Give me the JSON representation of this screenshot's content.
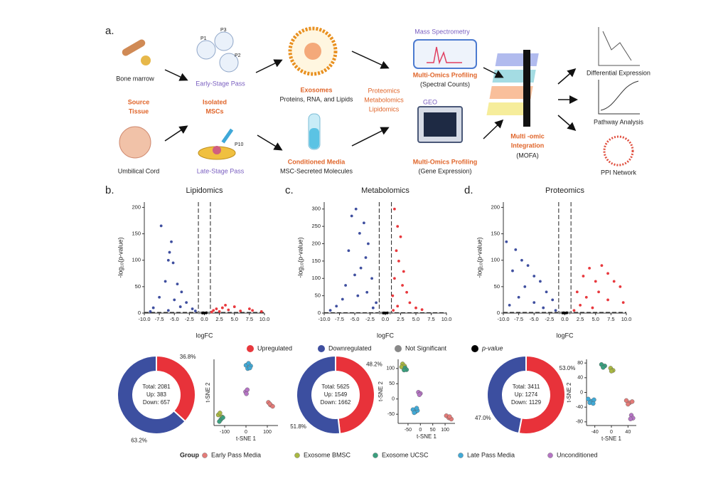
{
  "panel_a": {
    "label": "a.",
    "bone_marrow": "Bone marrow",
    "source_tissue": [
      "Source",
      "Tissue"
    ],
    "umbilical_cord": "Umbilical Cord",
    "passages": [
      "P1",
      "P2",
      "P3",
      "P10"
    ],
    "early_stage": "Early-Stage Pass",
    "isolated_mscs": [
      "Isolated",
      "MSCs"
    ],
    "late_stage": "Late-Stage Pass",
    "exosomes": "Exosomes",
    "exosome_contents": "Proteins, RNA, and Lipids",
    "conditioned_media": "Conditioned Media",
    "media_contents": "MSC-Secreted Molecules",
    "omics": [
      "Proteomics",
      "Metabolomics",
      "Lipidomics"
    ],
    "mass_spec": "Mass Spectrometry",
    "profiling_top": "Multi-Omics Profiling",
    "spectral": "(Spectral Counts)",
    "geo": "GEO",
    "profiling_bottom": "Multi-Omics Profiling",
    "gene_expr": "(Gene Expression)",
    "integration": [
      "Multi -omic",
      "Integration"
    ],
    "mofa": "(MOFA)",
    "outputs": [
      "Differential Expression",
      "Pathway Analysis",
      "PPI Network"
    ]
  },
  "volcano_legend": {
    "items": [
      {
        "name": "Upregulated",
        "color": "#e8383d"
      },
      {
        "name": "Downregulated",
        "color": "#3f4f9f"
      },
      {
        "name": "Not Significant",
        "color": "#888888"
      },
      {
        "name": "p-value",
        "color": "#000000"
      }
    ]
  },
  "group_legend": {
    "title": "Group",
    "items": [
      {
        "name": "Early Pass Media",
        "color": "#e37b78"
      },
      {
        "name": "Exosome BMSC",
        "color": "#a9b842"
      },
      {
        "name": "Exosome UCSC",
        "color": "#3a9f7e"
      },
      {
        "name": "Late Pass Media",
        "color": "#41a9d6"
      },
      {
        "name": "Unconditioned",
        "color": "#b574c4"
      }
    ]
  },
  "chart_data": [
    {
      "type": "volcano",
      "panel": "b.",
      "title": "Lipidomics",
      "x_label": "logFC",
      "y_label": "-log₁₀(p-value)",
      "xlim": [
        -10,
        10
      ],
      "xticks": [
        {
          "value": -10,
          "label": "-10.0"
        },
        -7.5,
        {
          "value": -5,
          "label": "-5.0"
        },
        -2.5,
        {
          "value": 0,
          "label": "0.0"
        },
        2.5,
        {
          "value": 5,
          "label": "5.0"
        },
        7.5,
        {
          "value": 10,
          "label": "10.0"
        }
      ],
      "ylim": [
        0,
        210
      ],
      "yticks": [
        0,
        50,
        100,
        150,
        200
      ],
      "fc_cutoff": [
        -1,
        1
      ],
      "p_cutoff": 1.3,
      "series": [
        {
          "x": [
            1.5,
            2,
            3,
            2.5,
            4,
            5,
            6,
            7.5,
            8,
            3.5,
            1.2,
            9.5
          ],
          "values": [
            5,
            8,
            10,
            3,
            6,
            12,
            4,
            8,
            5,
            15,
            2,
            3
          ]
        },
        {
          "x": [
            -7.2,
            -5.5,
            -5.8,
            -6,
            -5.2,
            -6.5,
            -4.5,
            -3.8,
            -7.5,
            -5,
            -3,
            -8.5,
            -2,
            -6,
            -4,
            -9,
            -1.5
          ],
          "values": [
            165,
            135,
            115,
            100,
            95,
            60,
            55,
            40,
            30,
            25,
            20,
            10,
            8,
            5,
            12,
            3,
            4
          ]
        },
        {
          "x": [
            -0.5,
            0.4,
            -0.2,
            0.8,
            -0.9
          ],
          "values": [
            0.5,
            0.8,
            1,
            0.3,
            0.6
          ]
        },
        {
          "x": [
            0,
            -0.3,
            0.3
          ],
          "values": [
            0.2,
            0.1,
            0.4
          ]
        }
      ]
    },
    {
      "type": "volcano",
      "panel": "c.",
      "title": "Metabolomics",
      "x_label": "logFC",
      "y_label": "-log₁₀(p-value)",
      "xlim": [
        -10,
        10
      ],
      "xticks": [
        {
          "value": -10,
          "label": "-10.0"
        },
        -7.5,
        {
          "value": -5,
          "label": "-5.0"
        },
        -2.5,
        {
          "value": 0,
          "label": "0.0"
        },
        2.5,
        {
          "value": 5,
          "label": "5.0"
        },
        7.5,
        {
          "value": 10,
          "label": "10.0"
        }
      ],
      "ylim": [
        0,
        320
      ],
      "yticks": [
        0,
        50,
        100,
        150,
        200,
        250,
        300
      ],
      "fc_cutoff": [
        -1,
        1
      ],
      "p_cutoff": 1.3,
      "series": [
        {
          "x": [
            1.5,
            2,
            2.5,
            1.8,
            2.2,
            3,
            1.5,
            2.8,
            3.5,
            1.2,
            4,
            2,
            6,
            1.3,
            5
          ],
          "values": [
            300,
            250,
            220,
            180,
            150,
            120,
            100,
            80,
            60,
            50,
            30,
            20,
            10,
            8,
            15
          ]
        },
        {
          "x": [
            -4.8,
            -5.5,
            -3.5,
            -4.2,
            -2.8,
            -6,
            -3.2,
            -4,
            -5,
            -2.2,
            -6.5,
            -3,
            -7,
            -8,
            -9,
            -1.5,
            -2,
            -4.5
          ],
          "values": [
            300,
            280,
            260,
            230,
            200,
            180,
            160,
            130,
            110,
            100,
            80,
            60,
            40,
            20,
            8,
            30,
            15,
            50
          ]
        },
        {
          "x": [
            -0.5,
            0.4,
            -0.2,
            0.8,
            -0.9
          ],
          "values": [
            0.5,
            0.8,
            1,
            0.3,
            0.6
          ]
        },
        {
          "x": [
            0,
            -0.3,
            0.3
          ],
          "values": [
            0.2,
            0.1,
            0.4
          ]
        }
      ]
    },
    {
      "type": "volcano",
      "panel": "d.",
      "title": "Proteomics",
      "x_label": "logFC",
      "y_label": "-log₁₀(p-value)",
      "xlim": [
        -10,
        10
      ],
      "xticks": [
        {
          "value": -10,
          "label": "-10.0"
        },
        -7.5,
        {
          "value": -5,
          "label": "-5.0"
        },
        -2.5,
        {
          "value": 0,
          "label": "0.0"
        },
        2.5,
        {
          "value": 5,
          "label": "5.0"
        },
        7.5,
        {
          "value": 10,
          "label": "10.0"
        }
      ],
      "ylim": [
        0,
        210
      ],
      "yticks": [
        0,
        50,
        100,
        150,
        200
      ],
      "fc_cutoff": [
        -1,
        1
      ],
      "p_cutoff": 1.3,
      "series": [
        {
          "x": [
            2,
            3,
            4,
            5,
            6,
            7,
            8,
            9,
            3.5,
            5.5,
            7,
            2.5,
            9.5,
            4.5,
            1.5
          ],
          "values": [
            40,
            70,
            85,
            60,
            90,
            75,
            60,
            50,
            30,
            40,
            25,
            15,
            20,
            10,
            5
          ]
        },
        {
          "x": [
            -9.5,
            -8,
            -7,
            -6,
            -8.5,
            -5,
            -4,
            -6.5,
            -3,
            -7.5,
            -2,
            -5,
            -9,
            -3.5,
            -1.5
          ],
          "values": [
            135,
            120,
            100,
            90,
            80,
            70,
            60,
            50,
            40,
            30,
            25,
            20,
            15,
            10,
            5
          ]
        },
        {
          "x": [
            -0.5,
            0.4,
            -0.2,
            0.8,
            -0.9
          ],
          "values": [
            0.5,
            0.8,
            1,
            0.3,
            0.6
          ]
        },
        {
          "x": [
            0,
            -0.3,
            0.3
          ],
          "values": [
            0.2,
            0.1,
            0.4
          ]
        }
      ]
    },
    {
      "type": "donut",
      "values": [
        36.8,
        63.2
      ],
      "value_labels": [
        "36.8%",
        "63.2%"
      ],
      "colors": [
        "#e8323a",
        "#3c4fa0"
      ],
      "center_text": [
        "Total: 2081",
        "Up: 383",
        "Down: 657"
      ]
    },
    {
      "type": "donut",
      "values": [
        48.2,
        51.8
      ],
      "value_labels": [
        "48.2%",
        "51.8%"
      ],
      "colors": [
        "#e8323a",
        "#3c4fa0"
      ],
      "center_text": [
        "Total: 5625",
        "Up: 1549",
        "Down: 1662"
      ]
    },
    {
      "type": "donut",
      "values": [
        53.0,
        47.0
      ],
      "value_labels": [
        "53.0%",
        "47.0%"
      ],
      "colors": [
        "#e8323a",
        "#3c4fa0"
      ],
      "center_text": [
        "Total: 3411",
        "Up: 1274",
        "Down: 1129"
      ]
    },
    {
      "type": "scatter",
      "x_label": "t-SNE 1",
      "y_label": "t-SNE 2",
      "xlim": [
        -150,
        150
      ],
      "xticks": [
        -100,
        0,
        100
      ],
      "ylim": [
        -100,
        100
      ],
      "yticks": [],
      "series": [
        {
          "x": [
            105,
            115,
            125,
            112
          ],
          "values": [
            -30,
            -38,
            -42,
            -35
          ]
        },
        {
          "x": [
            -130,
            -122,
            -112
          ],
          "values": [
            -68,
            -62,
            -74
          ]
        },
        {
          "x": [
            -118,
            -108,
            -125
          ],
          "values": [
            -82,
            -76,
            -88
          ]
        },
        {
          "x": [
            0,
            12,
            22,
            8,
            18
          ],
          "values": [
            82,
            88,
            80,
            72,
            74
          ]
        },
        {
          "x": [
            -2,
            6,
            2
          ],
          "values": [
            2,
            8,
            -4
          ]
        }
      ]
    },
    {
      "type": "scatter",
      "x_label": "t-SNE 1",
      "y_label": "t-SNE 2",
      "xlim": [
        -90,
        140
      ],
      "xticks": [
        -50,
        0,
        50,
        100
      ],
      "ylim": [
        -80,
        130
      ],
      "yticks": [
        -50,
        0,
        50,
        100
      ],
      "series": [
        {
          "x": [
            105,
            115,
            125,
            118
          ],
          "values": [
            -55,
            -62,
            -66,
            -58
          ]
        },
        {
          "x": [
            -72,
            -64,
            -76
          ],
          "values": [
            115,
            108,
            105
          ]
        },
        {
          "x": [
            -62,
            -56,
            -66
          ],
          "values": [
            102,
            96,
            95
          ]
        },
        {
          "x": [
            -30,
            -20,
            -12,
            -25,
            -15
          ],
          "values": [
            -35,
            -42,
            -38,
            -45,
            -30
          ]
        },
        {
          "x": [
            -8,
            0,
            -4
          ],
          "values": [
            22,
            18,
            14
          ]
        }
      ]
    },
    {
      "type": "scatter",
      "x_label": "t-SNE 1",
      "y_label": "t-SNE 2",
      "xlim": [
        -60,
        60
      ],
      "xticks": [
        -40,
        0,
        40
      ],
      "ylim": [
        -90,
        90
      ],
      "yticks": [
        -80,
        -40,
        0,
        40,
        80
      ],
      "series": [
        {
          "x": [
            36,
            44,
            50,
            40
          ],
          "values": [
            -22,
            -28,
            -25,
            -32
          ]
        },
        {
          "x": [
            -2,
            4,
            0
          ],
          "values": [
            66,
            60,
            58
          ]
        },
        {
          "x": [
            -24,
            -16,
            -20
          ],
          "values": [
            76,
            72,
            68
          ]
        },
        {
          "x": [
            -56,
            -48,
            -42,
            -52,
            -44
          ],
          "values": [
            -18,
            -24,
            -20,
            -28,
            -30
          ]
        },
        {
          "x": [
            48,
            52,
            46
          ],
          "values": [
            -62,
            -70,
            -72
          ]
        }
      ]
    }
  ]
}
